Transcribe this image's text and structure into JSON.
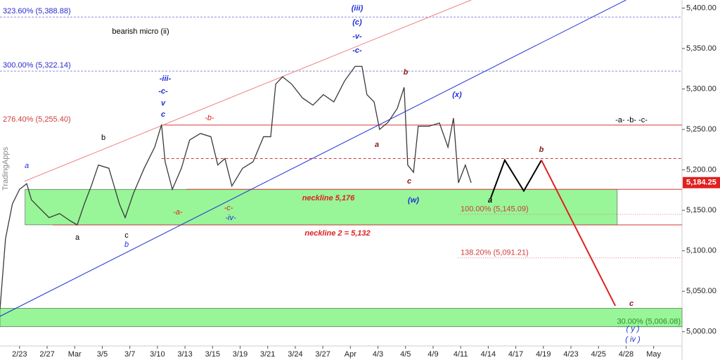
{
  "chart_data": {
    "type": "line",
    "xlim": [
      -0.71,
      24.03
    ],
    "ylim": [
      4965,
      5410
    ],
    "xticks": [
      {
        "value": 0,
        "label": "2/23"
      },
      {
        "value": 1,
        "label": "2/27"
      },
      {
        "value": 2,
        "label": "Mar"
      },
      {
        "value": 3,
        "label": "3/5"
      },
      {
        "value": 4,
        "label": "3/7"
      },
      {
        "value": 5,
        "label": "3/10"
      },
      {
        "value": 6,
        "label": "3/13"
      },
      {
        "value": 7,
        "label": "3/15"
      },
      {
        "value": 8,
        "label": "3/19"
      },
      {
        "value": 9,
        "label": "3/21"
      },
      {
        "value": 10,
        "label": "3/24"
      },
      {
        "value": 11,
        "label": "3/27"
      },
      {
        "value": 12,
        "label": "Apr"
      },
      {
        "value": 13,
        "label": "4/3"
      },
      {
        "value": 14,
        "label": "4/5"
      },
      {
        "value": 15,
        "label": "4/9"
      },
      {
        "value": 16,
        "label": "4/11"
      },
      {
        "value": 17,
        "label": "4/14"
      },
      {
        "value": 18,
        "label": "4/17"
      },
      {
        "value": 19,
        "label": "4/19"
      },
      {
        "value": 20,
        "label": "4/23"
      },
      {
        "value": 21,
        "label": "4/25"
      },
      {
        "value": 22,
        "label": "4/28"
      },
      {
        "value": 23,
        "label": "May"
      }
    ],
    "yticks": [
      {
        "value": 5000,
        "label": "5,000.00"
      },
      {
        "value": 5050,
        "label": "5,050.00"
      },
      {
        "value": 5100,
        "label": "5,100.00"
      },
      {
        "value": 5150,
        "label": "5,150.00"
      },
      {
        "value": 5200,
        "label": "5,200.00"
      },
      {
        "value": 5250,
        "label": "5,250.00"
      },
      {
        "value": 5300,
        "label": "5,300.00"
      },
      {
        "value": 5350,
        "label": "5,350.00"
      },
      {
        "value": 5400,
        "label": "5,400.00"
      }
    ],
    "series": [
      {
        "color": "#3a3a3a",
        "x": [
          -0.71,
          -0.51,
          -0.26,
          0,
          0.26,
          0.43,
          0.69,
          1.07,
          1.45,
          1.84,
          2.09,
          2.35,
          2.6,
          2.86,
          3.24,
          3.62,
          3.83,
          4.13,
          4.52,
          4.9,
          5.15,
          5.28,
          5.54,
          5.87,
          6.17,
          6.56,
          6.94,
          7.19,
          7.45,
          7.7,
          8.09,
          8.47,
          8.85,
          9.11,
          9.29,
          9.54,
          9.87,
          10.26,
          10.64,
          11.02,
          11.4,
          11.79,
          12.17,
          12.42,
          12.6,
          12.86,
          13.06,
          13.37,
          13.7,
          13.95,
          14.08,
          14.29,
          14.46,
          14.85,
          15.23,
          15.54,
          15.74,
          15.92,
          16.17,
          16.38
        ],
        "values": [
          5028,
          5115,
          5158,
          5176,
          5183,
          5163,
          5154,
          5141,
          5146,
          5137,
          5132,
          5158,
          5180,
          5206,
          5202,
          5158,
          5141,
          5171,
          5202,
          5228,
          5256,
          5210,
          5176,
          5202,
          5237,
          5245,
          5241,
          5206,
          5214,
          5180,
          5202,
          5210,
          5241,
          5241,
          5306,
          5315,
          5306,
          5289,
          5280,
          5293,
          5284,
          5310,
          5328,
          5328,
          5293,
          5284,
          5250,
          5259,
          5276,
          5302,
          5206,
          5197,
          5254,
          5254,
          5258,
          5228,
          5264,
          5184,
          5206,
          5184
        ]
      }
    ],
    "last_price": {
      "value": 5184.25,
      "label": "5,184.25"
    },
    "zones": [
      {
        "x": [
          0.2,
          21.68
        ],
        "y": [
          5132,
          5176
        ],
        "color": "#98f598"
      },
      {
        "x": [
          -0.71,
          24.03
        ],
        "y": [
          5006.08,
          5029
        ],
        "color": "#98f598"
      }
    ],
    "levels": [
      {
        "label": "323.60% (5,388.88)",
        "value": 5388.88,
        "color": "#8c8cd8",
        "from": -0.71
      },
      {
        "label": "300.00% (5,322.14)",
        "value": 5322.14,
        "color": "#8c8cd8",
        "from": -0.71
      },
      {
        "label": "276.40% (5,255.40)",
        "value": 5255.4,
        "color": "#d23b3b",
        "from": 5.15
      },
      {
        "label": "100.00% (5,145.09)",
        "value": 5145.09,
        "color": "#e08080",
        "from": 15.9
      },
      {
        "label": "138.20% (5,091.21)",
        "value": 5091.21,
        "color": "#e08080",
        "from": 15.9
      },
      {
        "label": "30.00% (5,006.08)",
        "value": 5006.08,
        "color": "#2e8b2e",
        "from": 21.7
      }
    ],
    "lines": [
      {
        "x": [
          5.15,
          24.03
        ],
        "y": [
          5214,
          5214
        ],
        "color": "#d23b3b",
        "dash": true
      },
      {
        "x": [
          6.05,
          24.03
        ],
        "y": [
          5176,
          5176
        ],
        "color": "#d23b3b",
        "dash": false
      },
      {
        "x": [
          1.2,
          24.03
        ],
        "y": [
          5132,
          5132
        ],
        "color": "#d23b3b",
        "dash": false
      },
      {
        "x": [
          -0.71,
          22.0
        ],
        "y": [
          5019,
          5410
        ],
        "color": "#1f2fd8",
        "dash": false
      },
      {
        "x": [
          0.18,
          16.38
        ],
        "y": [
          5186,
          5410
        ],
        "color": "#f08080",
        "dash": false
      },
      {
        "x": [
          17.09,
          17.6,
          18.29,
          18.93
        ],
        "y": [
          5165,
          5212,
          5174,
          5212
        ],
        "color": "#000000",
        "dash": false
      },
      {
        "x": [
          18.93,
          21.61
        ],
        "y": [
          5212,
          5032
        ],
        "color": "#e02020",
        "dash": false
      }
    ],
    "annotations": [
      {
        "text": "bearish micro (ii)",
        "color": "#000"
      },
      {
        "text": "(iii)",
        "color": "#1f2fd8"
      },
      {
        "text": "(c)",
        "color": "#1f2fd8"
      },
      {
        "text": "-v-",
        "color": "#1f2fd8"
      },
      {
        "text": "-c-",
        "color": "#1f2fd8"
      },
      {
        "text": "-iii-",
        "color": "#1f2fd8"
      },
      {
        "text": "-c-",
        "color": "#1f2fd8"
      },
      {
        "text": "v",
        "color": "#1f2fd8"
      },
      {
        "text": "c",
        "color": "#1f2fd8"
      },
      {
        "text": "a",
        "color": "#1f2fd8"
      },
      {
        "text": "b",
        "color": "#000"
      },
      {
        "text": "-b-",
        "color": "#d22"
      },
      {
        "text": "-a-",
        "color": "#d22"
      },
      {
        "text": "-c-",
        "color": "#d22"
      },
      {
        "text": "-iv-",
        "color": "#1f2fd8"
      },
      {
        "text": "a",
        "color": "#000"
      },
      {
        "text": "c",
        "color": "#000"
      },
      {
        "text": "b",
        "color": "#1f2fd8"
      },
      {
        "text": "b",
        "color": "#8b1a1a"
      },
      {
        "text": "a",
        "color": "#8b1a1a"
      },
      {
        "text": "c",
        "color": "#8b1a1a"
      },
      {
        "text": "(w)",
        "color": "#1f2fd8"
      },
      {
        "text": "(x)",
        "color": "#1f2fd8"
      },
      {
        "text": "-a- -b- -c-",
        "color": "#000"
      },
      {
        "text": "a",
        "color": "#000"
      },
      {
        "text": "b",
        "color": "#8b1a1a"
      },
      {
        "text": "c",
        "color": "#8b1a1a"
      },
      {
        "text": "( y )",
        "color": "#1f2fd8"
      },
      {
        "text": "( iv )",
        "color": "#1f2fd8"
      },
      {
        "text": "neckline 5,176",
        "color": "#e02020"
      },
      {
        "text": "neckline 2 = 5,132",
        "color": "#e02020"
      }
    ],
    "watermark": "TradingApps"
  }
}
